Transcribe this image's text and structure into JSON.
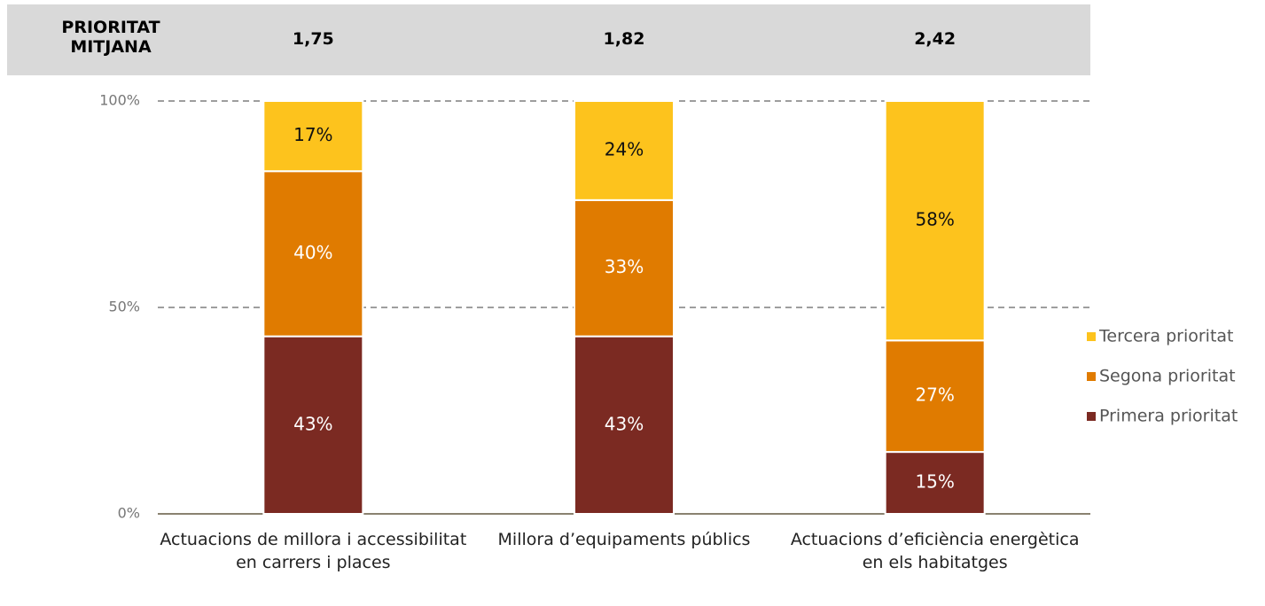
{
  "chart_data": {
    "type": "stacked_bar",
    "header": {
      "label": "PRIORITAT MITJANA",
      "values": [
        "1,75",
        "1,82",
        "2,42"
      ]
    },
    "categories": [
      "Actuacions de millora i accessibilitat en carrers i places",
      "Millora d’equipaments públics",
      "Actuacions d’eficiència energètica en els habitatges"
    ],
    "series": [
      {
        "name": "Primera prioritat",
        "color": "#7b2a22",
        "values": [
          43,
          43,
          15
        ],
        "value_labels": [
          "43%",
          "43%",
          "15%"
        ]
      },
      {
        "name": "Segona prioritat",
        "color": "#e07b00",
        "values": [
          40,
          33,
          27
        ],
        "value_labels": [
          "40%",
          "33%",
          "27%"
        ]
      },
      {
        "name": "Tercera prioritat",
        "color": "#fdc31d",
        "values": [
          17,
          24,
          58
        ],
        "value_labels": [
          "17%",
          "24%",
          "58%"
        ]
      }
    ],
    "ylim": [
      0,
      100
    ],
    "yticks": [
      {
        "value": 0,
        "label": "0%"
      },
      {
        "value": 50,
        "label": "50%"
      },
      {
        "value": 100,
        "label": "100%"
      }
    ],
    "grid": true,
    "legend": "right"
  }
}
